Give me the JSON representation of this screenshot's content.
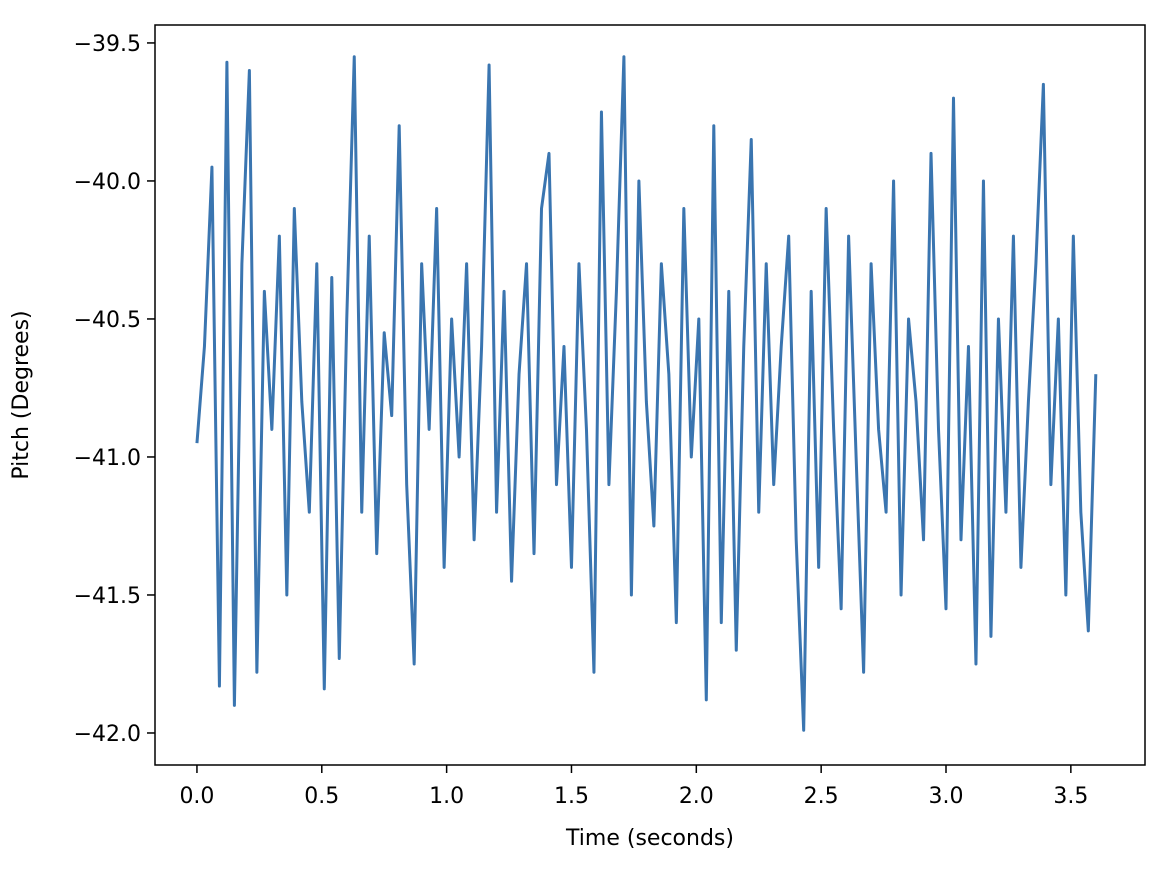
{
  "chart_data": {
    "type": "line",
    "xlabel": "Time (seconds)",
    "ylabel": "Pitch (Degrees)",
    "x": [
      0,
      0.03,
      0.06,
      0.09,
      0.12,
      0.15,
      0.18,
      0.21,
      0.24,
      0.27,
      0.3,
      0.33,
      0.36,
      0.39,
      0.42,
      0.45,
      0.48,
      0.51,
      0.54,
      0.57,
      0.6,
      0.63,
      0.66,
      0.69,
      0.72,
      0.75,
      0.78,
      0.81,
      0.84,
      0.87,
      0.9,
      0.93,
      0.96,
      0.99,
      1.02,
      1.05,
      1.08,
      1.11,
      1.14,
      1.17,
      1.2,
      1.23,
      1.26,
      1.29,
      1.32,
      1.35,
      1.38,
      1.41,
      1.44,
      1.47,
      1.5,
      1.53,
      1.56,
      1.59,
      1.62,
      1.65,
      1.68,
      1.71,
      1.74,
      1.77,
      1.8,
      1.83,
      1.86,
      1.89,
      1.92,
      1.95,
      1.98,
      2.01,
      2.04,
      2.07,
      2.1,
      2.13,
      2.16,
      2.19,
      2.22,
      2.25,
      2.28,
      2.31,
      2.34,
      2.37,
      2.4,
      2.43,
      2.46,
      2.49,
      2.52,
      2.55,
      2.58,
      2.61,
      2.64,
      2.67,
      2.7,
      2.73,
      2.76,
      2.79,
      2.82,
      2.85,
      2.88,
      2.91,
      2.94,
      2.97,
      3.0,
      3.03,
      3.06,
      3.09,
      3.12,
      3.15,
      3.18,
      3.21,
      3.24,
      3.27,
      3.3,
      3.33,
      3.36,
      3.39,
      3.42,
      3.45,
      3.48,
      3.51,
      3.54,
      3.57,
      3.6
    ],
    "series": [
      {
        "name": "Pitch",
        "color": "#3a75b0",
        "values": [
          -40.95,
          -40.6,
          -39.95,
          -41.83,
          -39.57,
          -41.9,
          -40.3,
          -39.6,
          -41.78,
          -40.4,
          -40.9,
          -40.2,
          -41.5,
          -40.1,
          -40.8,
          -41.2,
          -40.3,
          -41.84,
          -40.35,
          -41.73,
          -40.5,
          -39.55,
          -41.2,
          -40.2,
          -41.35,
          -40.55,
          -40.85,
          -39.8,
          -41.1,
          -41.75,
          -40.3,
          -40.9,
          -40.1,
          -41.4,
          -40.5,
          -41.0,
          -40.3,
          -41.3,
          -40.6,
          -39.58,
          -41.2,
          -40.4,
          -41.45,
          -40.7,
          -40.3,
          -41.35,
          -40.1,
          -39.9,
          -41.1,
          -40.6,
          -41.4,
          -40.3,
          -40.9,
          -41.78,
          -39.75,
          -41.1,
          -40.4,
          -39.55,
          -41.5,
          -40.0,
          -40.8,
          -41.25,
          -40.3,
          -40.7,
          -41.6,
          -40.1,
          -41.0,
          -40.5,
          -41.88,
          -39.8,
          -41.6,
          -40.4,
          -41.7,
          -40.6,
          -39.85,
          -41.2,
          -40.3,
          -41.1,
          -40.6,
          -40.2,
          -41.3,
          -41.99,
          -40.4,
          -41.4,
          -40.1,
          -40.9,
          -41.55,
          -40.2,
          -41.0,
          -41.78,
          -40.3,
          -40.9,
          -41.2,
          -40.0,
          -41.5,
          -40.5,
          -40.8,
          -41.3,
          -39.9,
          -40.9,
          -41.55,
          -39.7,
          -41.3,
          -40.6,
          -41.75,
          -40.0,
          -41.65,
          -40.5,
          -41.2,
          -40.2,
          -41.4,
          -40.8,
          -40.3,
          -39.65,
          -41.1,
          -40.5,
          -41.5,
          -40.2,
          -41.2,
          -41.63,
          -40.7
        ]
      }
    ],
    "xlim": [
      -0.168,
      3.797
    ],
    "ylim": [
      -42.116,
      -39.435
    ],
    "xticks": [
      {
        "value": 0,
        "label": "0.0"
      },
      0.5,
      {
        "value": 1,
        "label": "1.0"
      },
      1.5,
      {
        "value": 2,
        "label": "2.0"
      },
      2.5,
      {
        "value": 3,
        "label": "3.0"
      },
      3.5
    ],
    "yticks": [
      {
        "value": -42,
        "label": "−42.0"
      },
      {
        "value": -41.5,
        "label": "−41.5"
      },
      {
        "value": -41,
        "label": "−41.0"
      },
      {
        "value": -40.5,
        "label": "−40.5"
      },
      {
        "value": -40,
        "label": "−40.0"
      },
      {
        "value": -39.5,
        "label": "−39.5"
      }
    ],
    "grid": false
  }
}
